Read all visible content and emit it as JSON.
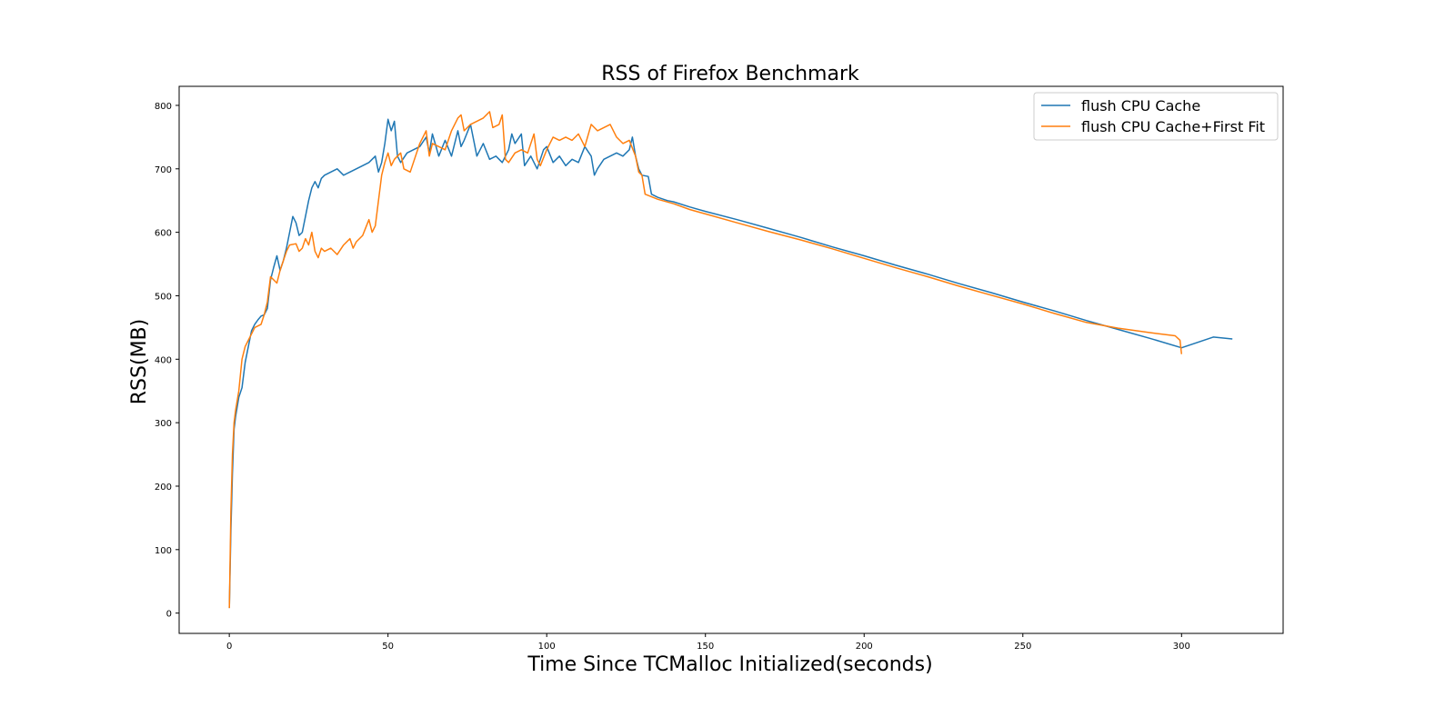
{
  "chart_data": {
    "type": "line",
    "title": "RSS of Firefox Benchmark",
    "xlabel": "Time Since TCMalloc Initialized(seconds)",
    "ylabel": "RSS(MB)",
    "xlim": [
      -15.8,
      332
    ],
    "ylim": [
      -32,
      830
    ],
    "xticks": [
      0,
      50,
      100,
      150,
      200,
      250,
      300
    ],
    "yticks": [
      0,
      100,
      200,
      300,
      400,
      500,
      600,
      700,
      800
    ],
    "grid": false,
    "legend_position": "top-right",
    "series": [
      {
        "name": "flush CPU Cache",
        "color": "#1f77b4",
        "points": [
          [
            0,
            8
          ],
          [
            0.5,
            130
          ],
          [
            1,
            220
          ],
          [
            1.5,
            290
          ],
          [
            2,
            310
          ],
          [
            3,
            340
          ],
          [
            4,
            355
          ],
          [
            5,
            395
          ],
          [
            6,
            420
          ],
          [
            7,
            445
          ],
          [
            8,
            455
          ],
          [
            9,
            462
          ],
          [
            10,
            468
          ],
          [
            11,
            470
          ],
          [
            12,
            480
          ],
          [
            13,
            525
          ],
          [
            14,
            545
          ],
          [
            15,
            563
          ],
          [
            16,
            540
          ],
          [
            17,
            555
          ],
          [
            18,
            575
          ],
          [
            19,
            600
          ],
          [
            20,
            625
          ],
          [
            21,
            615
          ],
          [
            22,
            595
          ],
          [
            23,
            600
          ],
          [
            24,
            625
          ],
          [
            25,
            650
          ],
          [
            26,
            670
          ],
          [
            27,
            680
          ],
          [
            28,
            670
          ],
          [
            29,
            685
          ],
          [
            30,
            690
          ],
          [
            32,
            695
          ],
          [
            34,
            700
          ],
          [
            36,
            690
          ],
          [
            38,
            695
          ],
          [
            40,
            700
          ],
          [
            42,
            705
          ],
          [
            44,
            710
          ],
          [
            46,
            720
          ],
          [
            47,
            695
          ],
          [
            48,
            710
          ],
          [
            49,
            740
          ],
          [
            50,
            778
          ],
          [
            51,
            760
          ],
          [
            52,
            775
          ],
          [
            53,
            720
          ],
          [
            54,
            710
          ],
          [
            56,
            725
          ],
          [
            58,
            730
          ],
          [
            60,
            735
          ],
          [
            62,
            750
          ],
          [
            63,
            725
          ],
          [
            64,
            755
          ],
          [
            66,
            720
          ],
          [
            68,
            745
          ],
          [
            70,
            720
          ],
          [
            72,
            760
          ],
          [
            73,
            735
          ],
          [
            74,
            745
          ],
          [
            76,
            770
          ],
          [
            78,
            720
          ],
          [
            80,
            740
          ],
          [
            82,
            715
          ],
          [
            84,
            720
          ],
          [
            86,
            710
          ],
          [
            88,
            730
          ],
          [
            89,
            755
          ],
          [
            90,
            740
          ],
          [
            92,
            755
          ],
          [
            93,
            705
          ],
          [
            95,
            720
          ],
          [
            97,
            700
          ],
          [
            99,
            730
          ],
          [
            100,
            735
          ],
          [
            102,
            710
          ],
          [
            104,
            720
          ],
          [
            106,
            705
          ],
          [
            108,
            715
          ],
          [
            110,
            710
          ],
          [
            112,
            735
          ],
          [
            114,
            720
          ],
          [
            115,
            690
          ],
          [
            116,
            700
          ],
          [
            118,
            715
          ],
          [
            120,
            720
          ],
          [
            122,
            725
          ],
          [
            124,
            720
          ],
          [
            126,
            730
          ],
          [
            127,
            750
          ],
          [
            128,
            720
          ],
          [
            129,
            700
          ],
          [
            130,
            690
          ],
          [
            132,
            688
          ],
          [
            133,
            660
          ],
          [
            135,
            655
          ],
          [
            138,
            650
          ],
          [
            140,
            648
          ],
          [
            145,
            640
          ],
          [
            150,
            633
          ],
          [
            160,
            620
          ],
          [
            170,
            606
          ],
          [
            180,
            592
          ],
          [
            190,
            577
          ],
          [
            200,
            563
          ],
          [
            210,
            548
          ],
          [
            220,
            534
          ],
          [
            230,
            519
          ],
          [
            240,
            505
          ],
          [
            250,
            490
          ],
          [
            260,
            476
          ],
          [
            270,
            461
          ],
          [
            280,
            447
          ],
          [
            290,
            433
          ],
          [
            300,
            418
          ],
          [
            310,
            435
          ],
          [
            316,
            432
          ]
        ]
      },
      {
        "name": "flush CPU Cache+First Fit",
        "color": "#ff7f0e",
        "points": [
          [
            0,
            8
          ],
          [
            0.5,
            160
          ],
          [
            1,
            250
          ],
          [
            1.5,
            300
          ],
          [
            2,
            320
          ],
          [
            3,
            350
          ],
          [
            4,
            400
          ],
          [
            5,
            420
          ],
          [
            6,
            430
          ],
          [
            7,
            440
          ],
          [
            8,
            450
          ],
          [
            10,
            455
          ],
          [
            11,
            470
          ],
          [
            12,
            490
          ],
          [
            13,
            530
          ],
          [
            14,
            525
          ],
          [
            15,
            520
          ],
          [
            16,
            540
          ],
          [
            17,
            555
          ],
          [
            18,
            570
          ],
          [
            19,
            580
          ],
          [
            21,
            582
          ],
          [
            22,
            570
          ],
          [
            23,
            575
          ],
          [
            24,
            590
          ],
          [
            25,
            580
          ],
          [
            26,
            600
          ],
          [
            27,
            570
          ],
          [
            28,
            560
          ],
          [
            29,
            575
          ],
          [
            30,
            570
          ],
          [
            32,
            575
          ],
          [
            34,
            565
          ],
          [
            36,
            580
          ],
          [
            38,
            590
          ],
          [
            39,
            575
          ],
          [
            40,
            585
          ],
          [
            42,
            595
          ],
          [
            44,
            620
          ],
          [
            45,
            600
          ],
          [
            46,
            610
          ],
          [
            47,
            650
          ],
          [
            48,
            690
          ],
          [
            49,
            710
          ],
          [
            50,
            725
          ],
          [
            51,
            705
          ],
          [
            52,
            715
          ],
          [
            53,
            720
          ],
          [
            54,
            725
          ],
          [
            55,
            700
          ],
          [
            57,
            695
          ],
          [
            58,
            710
          ],
          [
            59,
            725
          ],
          [
            60,
            740
          ],
          [
            62,
            760
          ],
          [
            63,
            720
          ],
          [
            64,
            740
          ],
          [
            66,
            735
          ],
          [
            68,
            730
          ],
          [
            70,
            760
          ],
          [
            72,
            780
          ],
          [
            73,
            785
          ],
          [
            74,
            760
          ],
          [
            76,
            770
          ],
          [
            78,
            775
          ],
          [
            80,
            780
          ],
          [
            82,
            790
          ],
          [
            83,
            765
          ],
          [
            85,
            770
          ],
          [
            86,
            785
          ],
          [
            87,
            715
          ],
          [
            88,
            710
          ],
          [
            90,
            725
          ],
          [
            92,
            730
          ],
          [
            94,
            725
          ],
          [
            96,
            755
          ],
          [
            97,
            715
          ],
          [
            98,
            705
          ],
          [
            100,
            730
          ],
          [
            102,
            750
          ],
          [
            104,
            745
          ],
          [
            106,
            750
          ],
          [
            108,
            745
          ],
          [
            110,
            755
          ],
          [
            112,
            735
          ],
          [
            114,
            770
          ],
          [
            116,
            760
          ],
          [
            118,
            765
          ],
          [
            120,
            770
          ],
          [
            122,
            750
          ],
          [
            124,
            740
          ],
          [
            126,
            745
          ],
          [
            128,
            720
          ],
          [
            129,
            695
          ],
          [
            130,
            690
          ],
          [
            131,
            660
          ],
          [
            135,
            652
          ],
          [
            140,
            645
          ],
          [
            145,
            636
          ],
          [
            150,
            629
          ],
          [
            160,
            615
          ],
          [
            170,
            601
          ],
          [
            180,
            588
          ],
          [
            190,
            574
          ],
          [
            200,
            559
          ],
          [
            210,
            544
          ],
          [
            220,
            530
          ],
          [
            230,
            515
          ],
          [
            240,
            501
          ],
          [
            250,
            487
          ],
          [
            260,
            472
          ],
          [
            270,
            458
          ],
          [
            280,
            449
          ],
          [
            290,
            442
          ],
          [
            298,
            437
          ],
          [
            299.5,
            430
          ],
          [
            300,
            408
          ]
        ]
      }
    ]
  }
}
